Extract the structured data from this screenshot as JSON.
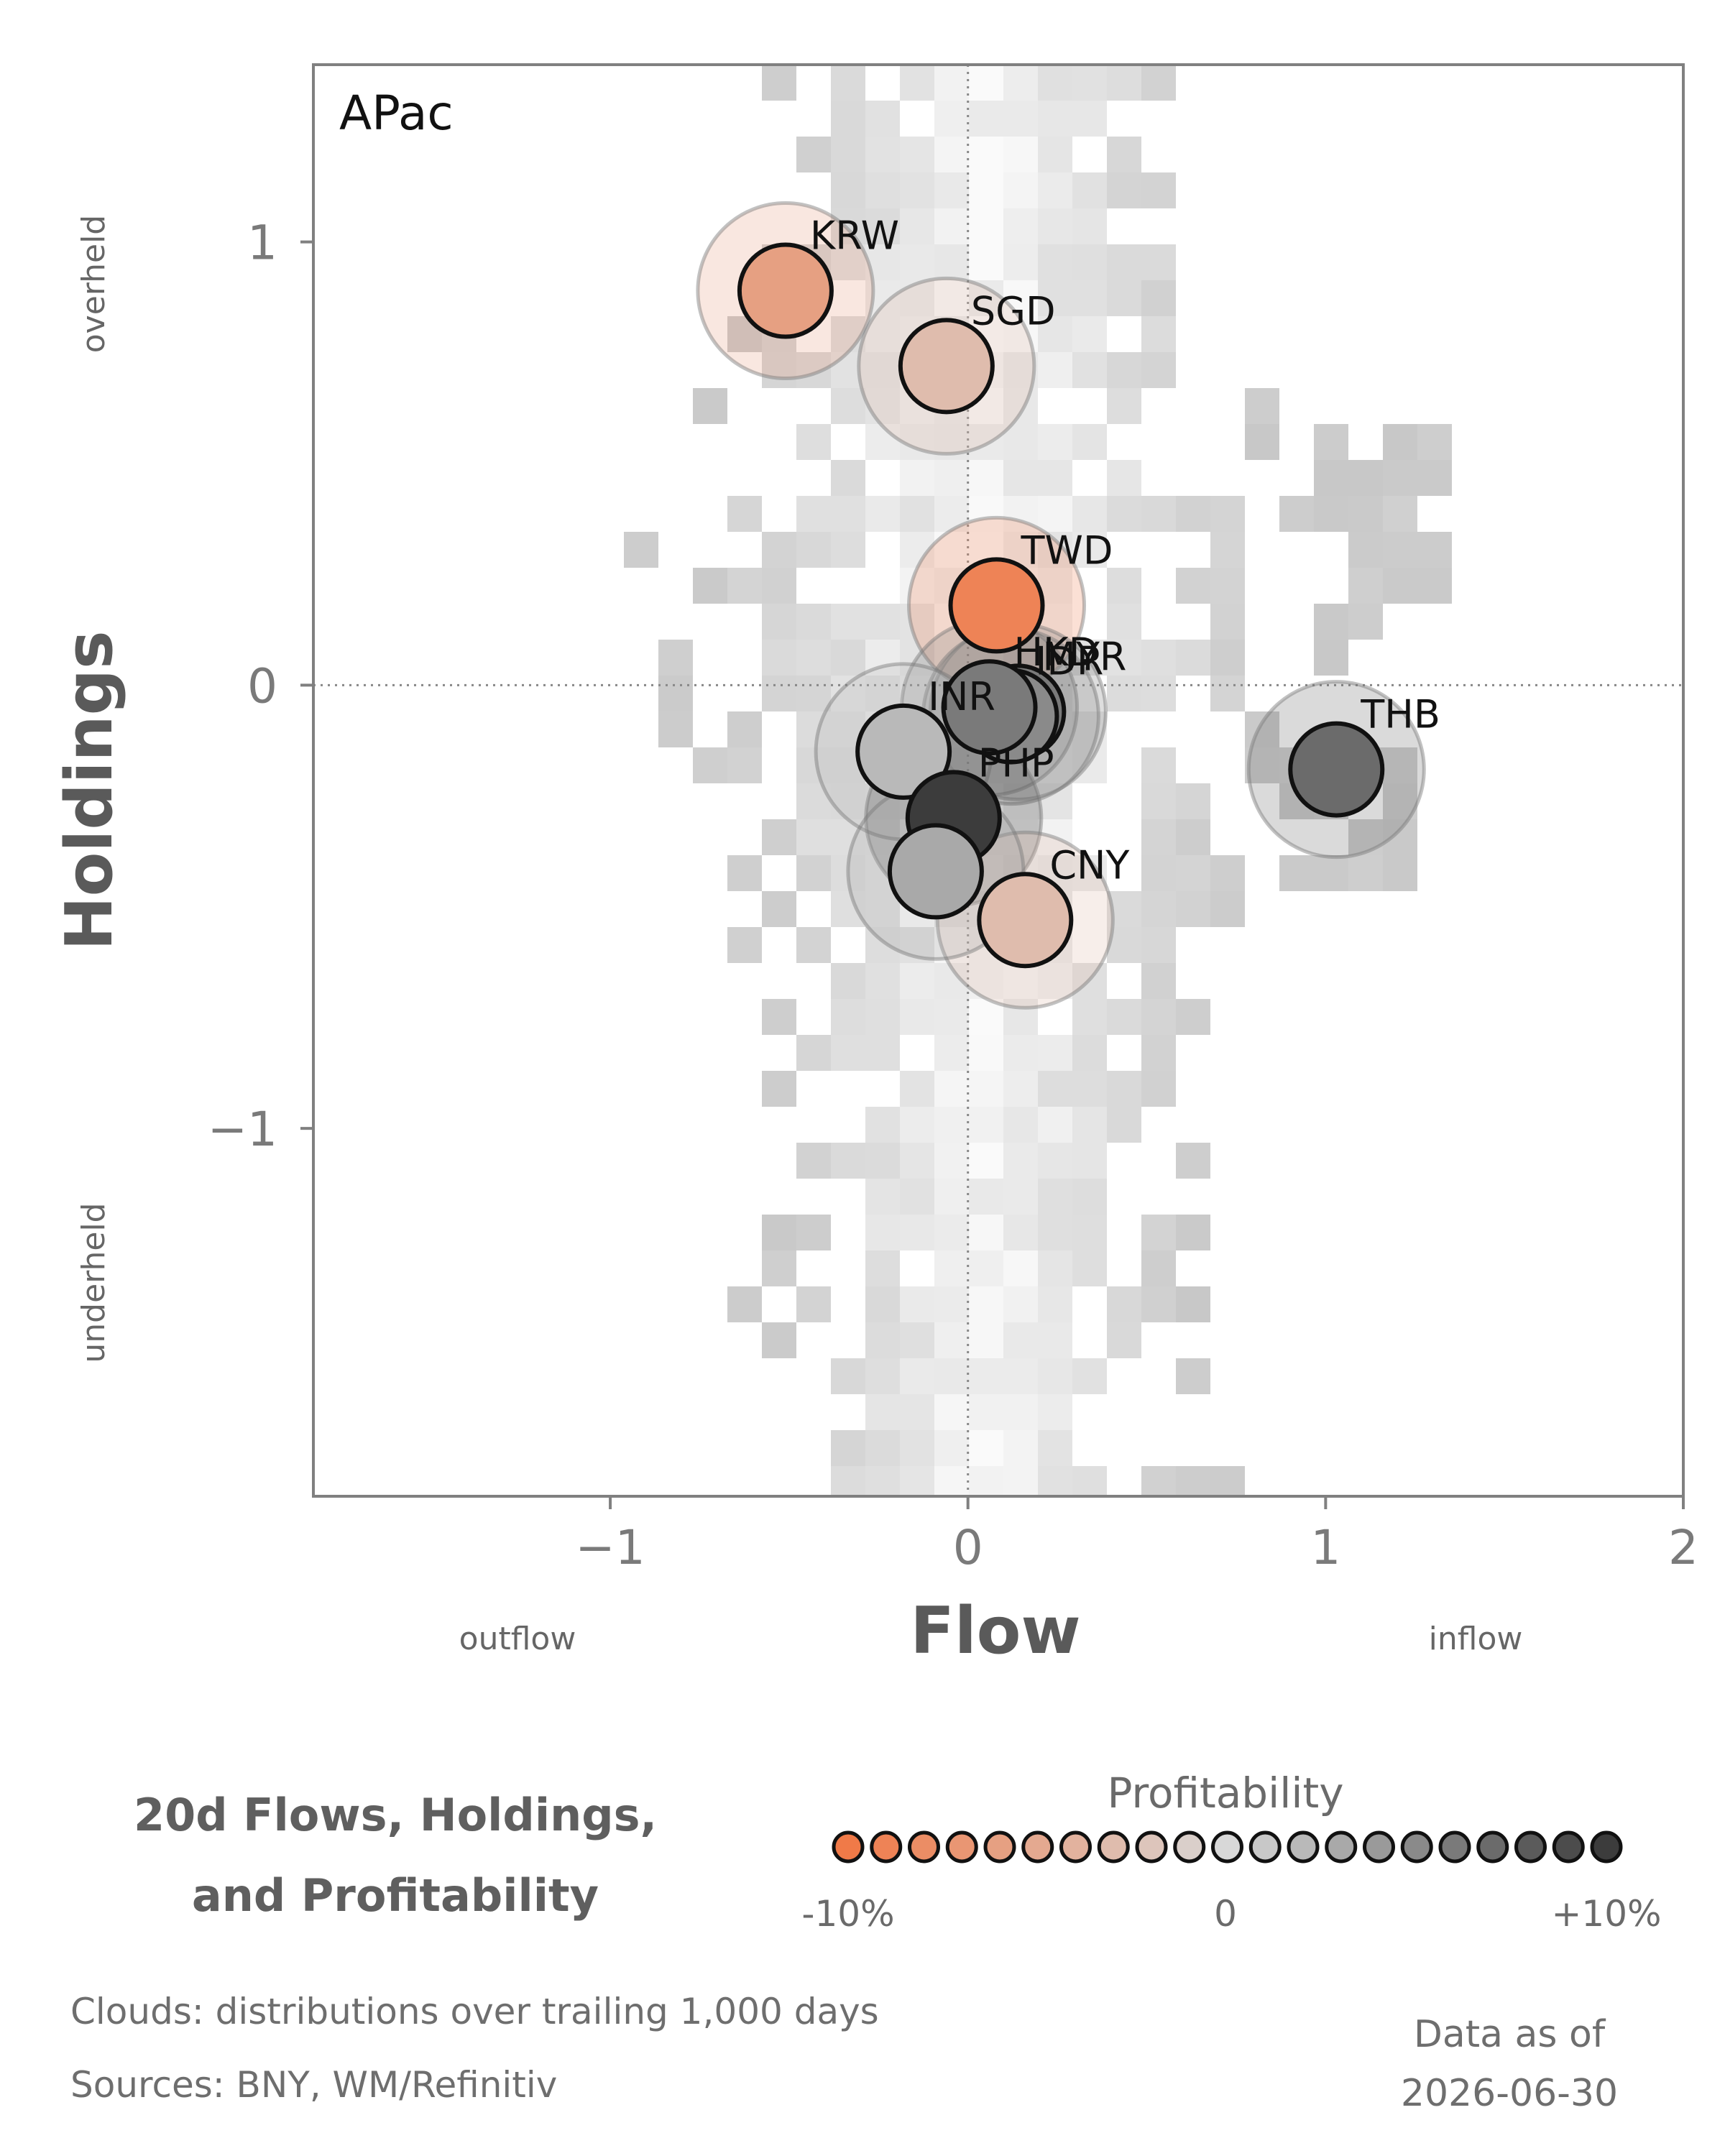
{
  "chart_data": {
    "type": "scatter",
    "panel_label": "APac",
    "xlabel": "Flow",
    "ylabel": "Holdings",
    "xlim": [
      -1.83,
      2.0
    ],
    "ylim": [
      -1.83,
      1.4
    ],
    "xticks": [
      -1,
      0,
      1,
      2
    ],
    "yticks": [
      -1,
      0,
      1
    ],
    "xtick_labels": [
      "−1",
      "0",
      "1",
      "2"
    ],
    "ytick_labels": [
      "−1",
      "0",
      "1"
    ],
    "x_region_labels": {
      "left": "outflow",
      "right": "inflow"
    },
    "y_region_labels": {
      "top": "overheld",
      "bottom": "underheld"
    },
    "reference_lines": {
      "x": 0,
      "y": 0,
      "style": "dotted"
    },
    "background": "2D histogram clouds (grayscale) of trailing distributions",
    "points": [
      {
        "label": "KRW",
        "x": -0.51,
        "y": 0.89,
        "profitability": -6
      },
      {
        "label": "SGD",
        "x": -0.06,
        "y": 0.72,
        "profitability": -3
      },
      {
        "label": "TWD",
        "x": 0.08,
        "y": 0.18,
        "profitability": -9
      },
      {
        "label": "MYR",
        "x": 0.14,
        "y": -0.06,
        "profitability": 6
      },
      {
        "label": "IDR",
        "x": 0.12,
        "y": -0.07,
        "profitability": 5
      },
      {
        "label": "HKD",
        "x": 0.06,
        "y": -0.05,
        "profitability": 6
      },
      {
        "label": "THB",
        "x": 1.03,
        "y": -0.19,
        "profitability": 7
      },
      {
        "label": "INR",
        "x": -0.18,
        "y": -0.15,
        "profitability": 2
      },
      {
        "label": "PHP",
        "x": -0.04,
        "y": -0.3,
        "profitability": 10
      },
      {
        "label": "CNY",
        "x": 0.16,
        "y": -0.53,
        "profitability": -3
      },
      {
        "label": "",
        "x": -0.09,
        "y": -0.42,
        "profitability": 3
      }
    ],
    "colors": {
      "negative": "#f07a48",
      "neutral": "#d8d8d8",
      "positive": "#3c3c3c"
    }
  },
  "legend": {
    "title_line1": "20d Flows, Holdings,",
    "title_line2": "and Profitability",
    "scale_title": "Profitability",
    "scale_min_label": "-10%",
    "scale_mid_label": "0",
    "scale_max_label": "+10%"
  },
  "footer": {
    "clouds_note": "Clouds:  distributions over trailing 1,000 days",
    "sources_note": "Sources:  BNY, WM/Refinitiv",
    "asof_line1": "Data as of",
    "asof_line2": "2026-06-30"
  }
}
